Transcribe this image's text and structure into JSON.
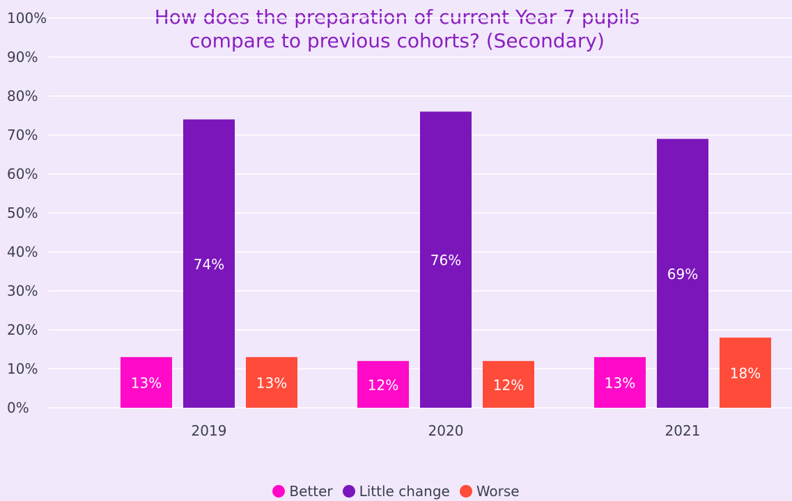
{
  "chart_data": {
    "type": "bar",
    "title": "How does the preparation of current Year 7 pupils\ncompare to previous cohorts? (Secondary)",
    "categories": [
      "2019",
      "2020",
      "2021"
    ],
    "series": [
      {
        "name": "Better",
        "values": [
          13,
          12,
          13
        ],
        "labels": [
          "13%",
          "12%",
          "13%"
        ],
        "color": "#ff0ac8"
      },
      {
        "name": "Little change",
        "values": [
          74,
          76,
          69
        ],
        "labels": [
          "74%",
          "76%",
          "69%"
        ],
        "color": "#7b16bb"
      },
      {
        "name": "Worse",
        "values": [
          13,
          12,
          18
        ],
        "labels": [
          "13%",
          "12%",
          "18%"
        ],
        "color": "#ff4b3a"
      }
    ],
    "ylim": [
      0,
      100
    ],
    "y_ticks": [
      "0%",
      "10%",
      "20%",
      "30%",
      "40%",
      "50%",
      "60%",
      "70%",
      "80%",
      "90%",
      "100%"
    ],
    "grid": true,
    "legend_position": "bottom"
  }
}
